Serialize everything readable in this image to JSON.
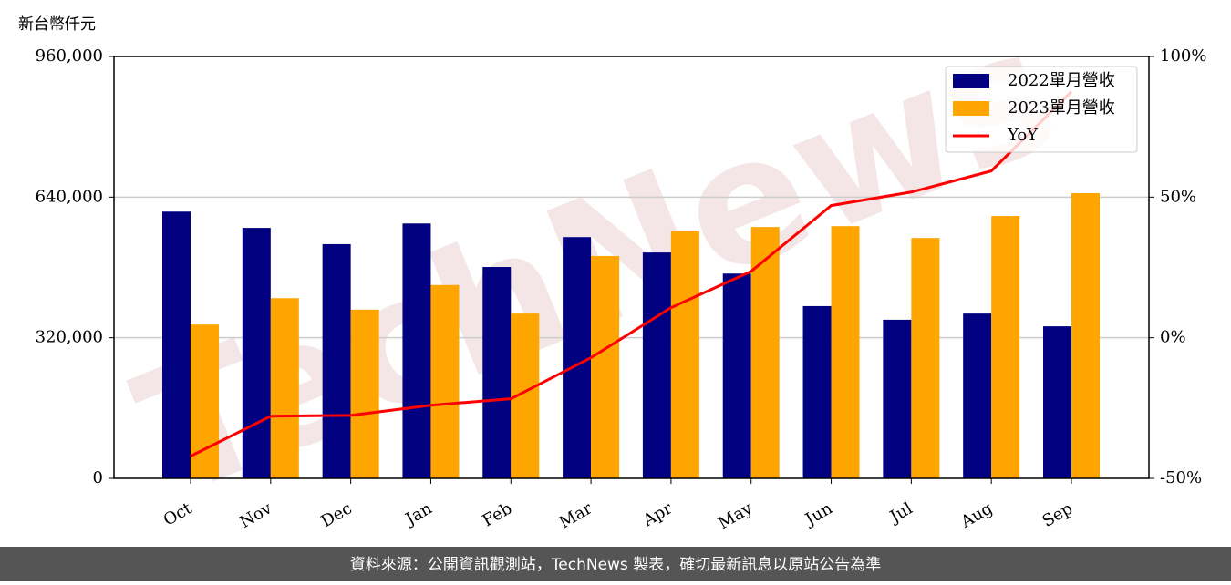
{
  "chart_data": {
    "type": "bar_line",
    "unit_label": "新台幣仟元",
    "watermark": "TechNews",
    "footer": "資料來源：公開資訊觀測站，TechNews 製表，確切最新訊息以原站公告為準",
    "categories": [
      "Oct",
      "Nov",
      "Dec",
      "Jan",
      "Feb",
      "Mar",
      "Apr",
      "May",
      "Jun",
      "Jul",
      "Aug",
      "Sep"
    ],
    "series": [
      {
        "name": "2022單月營收",
        "color": "#000080",
        "type": "bar",
        "values": [
          607000,
          570000,
          533000,
          580000,
          481000,
          549000,
          514000,
          466000,
          392000,
          361000,
          375000,
          346000
        ]
      },
      {
        "name": "2023單月營收",
        "color": "#ffa500",
        "type": "bar",
        "values": [
          350000,
          410000,
          384000,
          440000,
          375000,
          506000,
          564000,
          572000,
          574000,
          547000,
          597000,
          649000
        ]
      },
      {
        "name": "YoY",
        "color": "#ff0000",
        "type": "line",
        "axis": "y2",
        "values": [
          -42.1,
          -27.9,
          -27.6,
          -24,
          -21.7,
          -7.1,
          10.7,
          23.6,
          47,
          51.8,
          59.3,
          87.5
        ]
      }
    ],
    "ylim": [
      0,
      960000
    ],
    "yticks": [
      {
        "value": 0,
        "label": "0"
      },
      {
        "value": 320000,
        "label": "320,000"
      },
      {
        "value": 640000,
        "label": "640,000"
      },
      {
        "value": 960000,
        "label": "960,000"
      }
    ],
    "y2lim": [
      -50,
      100
    ],
    "y2ticks": [
      {
        "value": -50,
        "label": "-50%"
      },
      {
        "value": 0,
        "label": "0%"
      },
      {
        "value": 50,
        "label": "50%"
      },
      {
        "value": 100,
        "label": "100%"
      }
    ],
    "grid": true,
    "legend": "upper right"
  }
}
